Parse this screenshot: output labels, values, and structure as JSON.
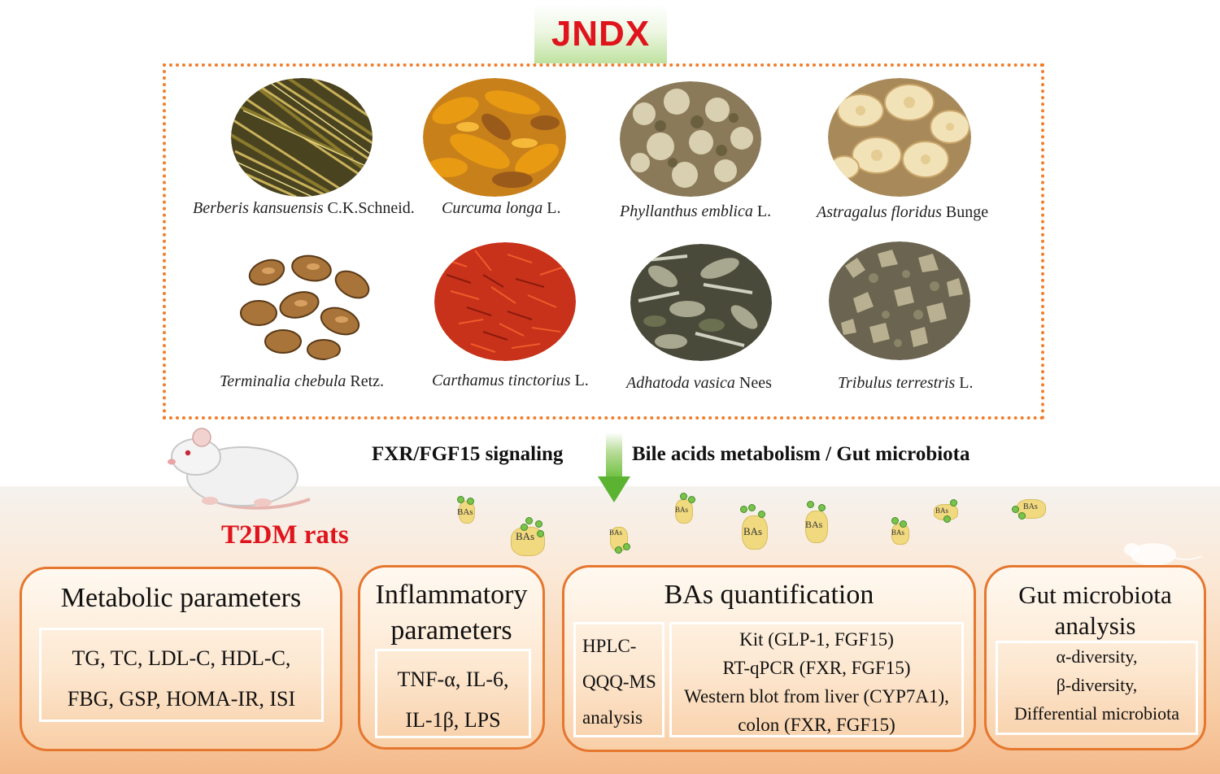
{
  "title": "JNDX",
  "herbs": [
    {
      "italic": "Berberis kansuensis",
      "rest": " C.K.Schneid."
    },
    {
      "italic": "Curcuma longa",
      "rest": " L."
    },
    {
      "italic": "Phyllanthus emblica",
      "rest": " L."
    },
    {
      "italic": "Astragalus floridus",
      "rest": " Bunge"
    },
    {
      "italic": "Terminalia chebula",
      "rest": " Retz."
    },
    {
      "italic": "Carthamus tinctorius",
      "rest": " L."
    },
    {
      "italic": "Adhatoda vasica",
      "rest": " Nees"
    },
    {
      "italic": "Tribulus terrestris",
      "rest": " L."
    }
  ],
  "pathway_left": "FXR/FGF15 signaling",
  "pathway_right": "Bile acids  metabolism / Gut microbiota",
  "model_label": "T2DM rats",
  "bile_acid_label": "BAs",
  "panels": {
    "metabolic": {
      "title": "Metabolic parameters",
      "lines": [
        "TG, TC, LDL-C, HDL-C,",
        "FBG, GSP, HOMA-IR, ISI"
      ]
    },
    "inflammatory": {
      "title_lines": [
        "Inflammatory",
        "parameters"
      ],
      "lines": [
        "TNF-α, IL-6,",
        "IL-1β, LPS"
      ]
    },
    "bas": {
      "title": "BAs quantification",
      "method_lines": [
        "HPLC-",
        "QQQ-MS",
        "analysis"
      ],
      "lines": [
        "Kit (GLP-1, FGF15)",
        "RT-qPCR (FXR, FGF15)",
        "Western blot from liver (CYP7A1),",
        "colon (FXR, FGF15)"
      ]
    },
    "gut": {
      "title_lines": [
        "Gut microbiota",
        "analysis"
      ],
      "lines": [
        "α-diversity,",
        "β-diversity,",
        "Differential microbiota"
      ]
    }
  },
  "colors": {
    "accent_red": "#e0141c",
    "frame_orange": "#f07e2b",
    "arrow_green": "#5cb332"
  }
}
